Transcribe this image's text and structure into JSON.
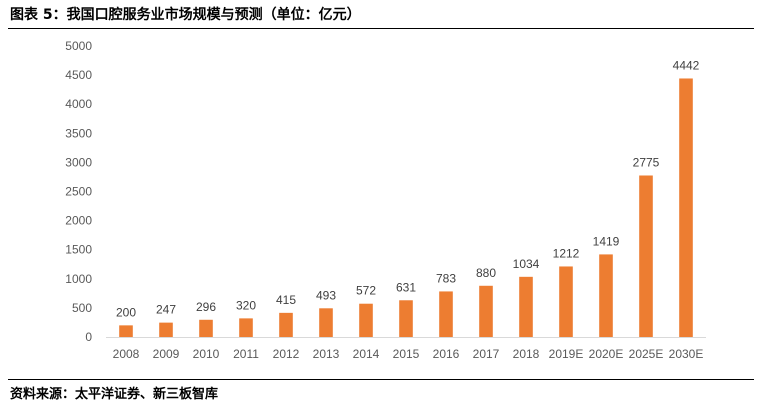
{
  "figure": {
    "title": "图表 5：我国口腔服务业市场规模与预测（单位：亿元）",
    "source": "资料来源：太平洋证券、新三板智库"
  },
  "colors": {
    "bar": "#ed7d31",
    "axis": "#d9d9d9",
    "text": "#595959"
  },
  "chart_data": {
    "type": "bar",
    "title": "我国口腔服务业市场规模与预测",
    "ylabel": "亿元",
    "xlabel": "",
    "ylim": [
      0,
      5000
    ],
    "ytick_step": 500,
    "grid": false,
    "legend": "none",
    "categories": [
      "2008",
      "2009",
      "2010",
      "2011",
      "2012",
      "2013",
      "2014",
      "2015",
      "2016",
      "2017",
      "2018",
      "2019E",
      "2020E",
      "2025E",
      "2030E"
    ],
    "values": [
      200,
      247,
      296,
      320,
      415,
      493,
      572,
      631,
      783,
      880,
      1034,
      1212,
      1419,
      2775,
      4442
    ],
    "yticks": [
      "0",
      "500",
      "1000",
      "1500",
      "2000",
      "2500",
      "3000",
      "3500",
      "4000",
      "4500",
      "5000"
    ]
  }
}
